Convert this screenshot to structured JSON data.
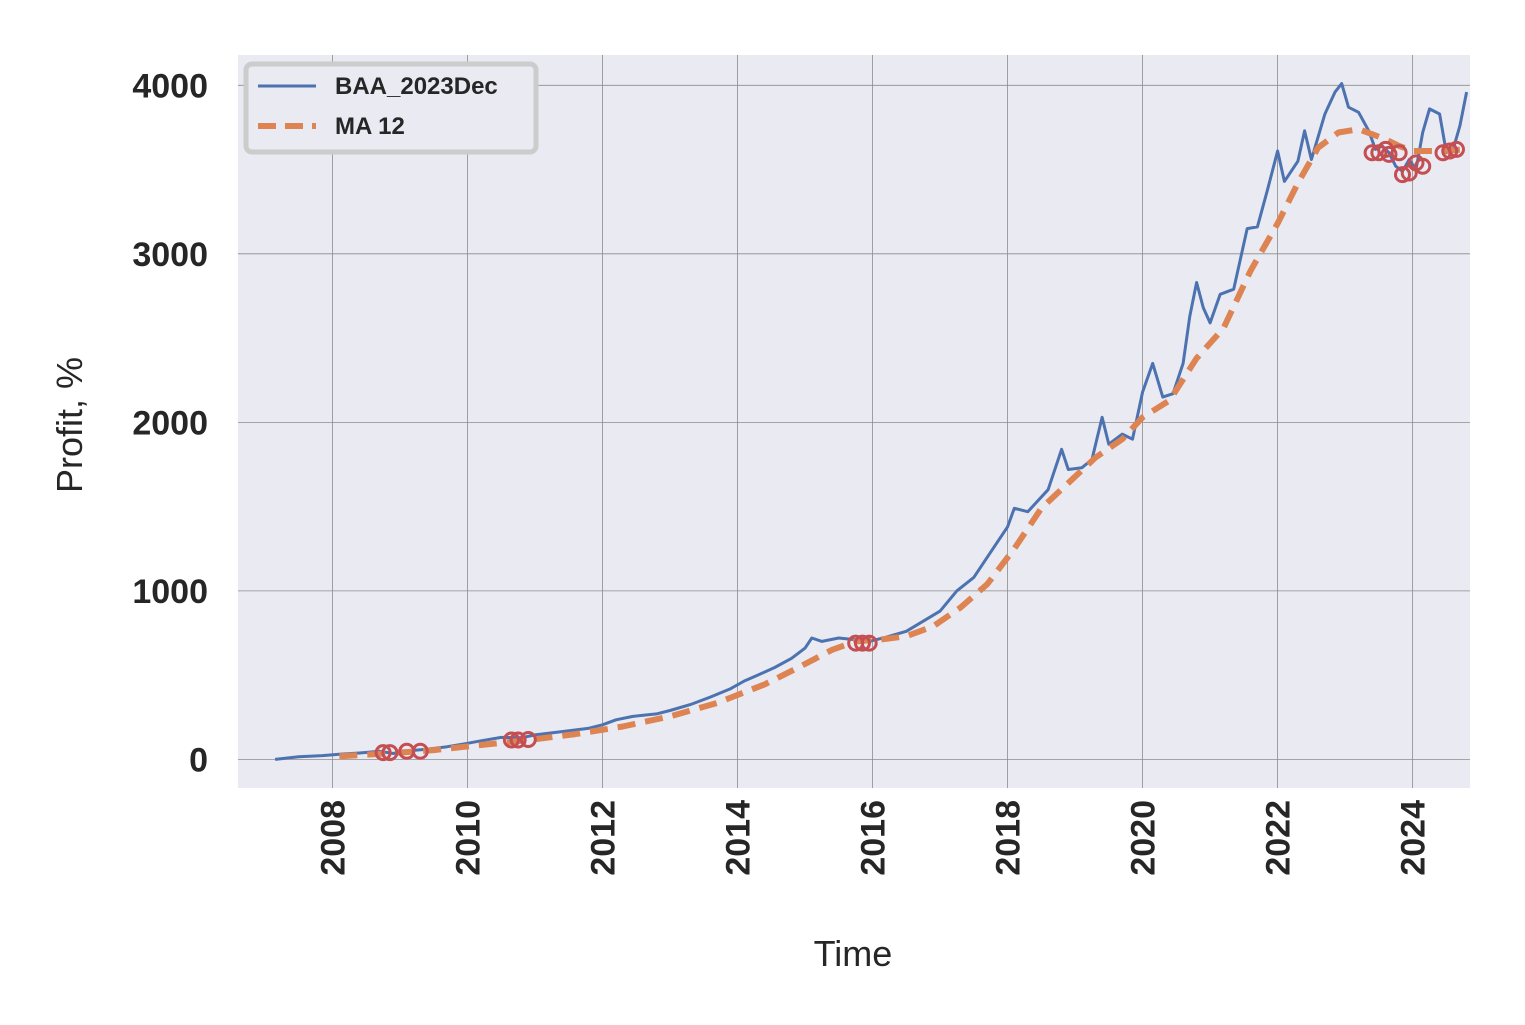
{
  "colors": {
    "plot_background": "#EAEAF2",
    "grid": "#8c8c8c",
    "series_line": "#4C72B0",
    "moving_average": "#DD8452",
    "markers": "#C44E52",
    "text": "#262626"
  },
  "chart_data": {
    "type": "line",
    "title": "",
    "xlabel": "Time",
    "ylabel": "Profit, %",
    "xlim": [
      2006.6,
      2024.85
    ],
    "ylim": [
      -170,
      4180
    ],
    "x_ticks": [
      "2008",
      "2010",
      "2012",
      "2014",
      "2016",
      "2018",
      "2020",
      "2022",
      "2024"
    ],
    "y_ticks": [
      "0",
      "1000",
      "2000",
      "3000",
      "4000"
    ],
    "grid": true,
    "legend": "top-left",
    "series": [
      {
        "name": "BAA_2023Dec",
        "style": "solid",
        "points": [
          [
            2007.15,
            0
          ],
          [
            2007.5,
            15
          ],
          [
            2007.85,
            22
          ],
          [
            2008.1,
            30
          ],
          [
            2008.4,
            38
          ],
          [
            2008.7,
            48
          ],
          [
            2008.9,
            35
          ],
          [
            2009.1,
            50
          ],
          [
            2009.4,
            60
          ],
          [
            2009.7,
            75
          ],
          [
            2010.0,
            95
          ],
          [
            2010.2,
            110
          ],
          [
            2010.5,
            130
          ],
          [
            2010.8,
            128
          ],
          [
            2011.0,
            145
          ],
          [
            2011.4,
            165
          ],
          [
            2011.8,
            185
          ],
          [
            2012.0,
            205
          ],
          [
            2012.2,
            235
          ],
          [
            2012.45,
            255
          ],
          [
            2012.8,
            270
          ],
          [
            2013.0,
            290
          ],
          [
            2013.3,
            325
          ],
          [
            2013.6,
            370
          ],
          [
            2013.9,
            420
          ],
          [
            2014.1,
            465
          ],
          [
            2014.3,
            500
          ],
          [
            2014.55,
            545
          ],
          [
            2014.8,
            600
          ],
          [
            2015.0,
            660
          ],
          [
            2015.1,
            720
          ],
          [
            2015.25,
            700
          ],
          [
            2015.5,
            720
          ],
          [
            2015.75,
            710
          ],
          [
            2015.95,
            700
          ],
          [
            2016.2,
            725
          ],
          [
            2016.5,
            760
          ],
          [
            2016.75,
            820
          ],
          [
            2017.0,
            880
          ],
          [
            2017.25,
            1000
          ],
          [
            2017.5,
            1080
          ],
          [
            2017.75,
            1230
          ],
          [
            2018.0,
            1380
          ],
          [
            2018.1,
            1490
          ],
          [
            2018.3,
            1470
          ],
          [
            2018.6,
            1600
          ],
          [
            2018.8,
            1840
          ],
          [
            2018.9,
            1720
          ],
          [
            2019.1,
            1730
          ],
          [
            2019.25,
            1780
          ],
          [
            2019.4,
            2030
          ],
          [
            2019.5,
            1870
          ],
          [
            2019.7,
            1930
          ],
          [
            2019.85,
            1900
          ],
          [
            2020.0,
            2180
          ],
          [
            2020.15,
            2350
          ],
          [
            2020.3,
            2150
          ],
          [
            2020.45,
            2170
          ],
          [
            2020.6,
            2350
          ],
          [
            2020.7,
            2630
          ],
          [
            2020.8,
            2830
          ],
          [
            2020.9,
            2680
          ],
          [
            2021.0,
            2590
          ],
          [
            2021.15,
            2760
          ],
          [
            2021.35,
            2790
          ],
          [
            2021.55,
            3150
          ],
          [
            2021.7,
            3160
          ],
          [
            2021.85,
            3380
          ],
          [
            2022.0,
            3610
          ],
          [
            2022.1,
            3430
          ],
          [
            2022.3,
            3550
          ],
          [
            2022.4,
            3730
          ],
          [
            2022.5,
            3560
          ],
          [
            2022.7,
            3830
          ],
          [
            2022.85,
            3960
          ],
          [
            2022.95,
            4010
          ],
          [
            2023.05,
            3870
          ],
          [
            2023.2,
            3840
          ],
          [
            2023.35,
            3730
          ],
          [
            2023.45,
            3620
          ],
          [
            2023.55,
            3640
          ],
          [
            2023.65,
            3600
          ],
          [
            2023.75,
            3520
          ],
          [
            2023.85,
            3490
          ],
          [
            2023.95,
            3560
          ],
          [
            2024.05,
            3500
          ],
          [
            2024.15,
            3720
          ],
          [
            2024.25,
            3860
          ],
          [
            2024.4,
            3830
          ],
          [
            2024.5,
            3600
          ],
          [
            2024.6,
            3620
          ],
          [
            2024.7,
            3760
          ],
          [
            2024.8,
            3960
          ]
        ]
      },
      {
        "name": "MA 12",
        "style": "dashed",
        "points": [
          [
            2008.1,
            18
          ],
          [
            2008.8,
            35
          ],
          [
            2009.5,
            55
          ],
          [
            2010.2,
            85
          ],
          [
            2010.9,
            115
          ],
          [
            2011.6,
            150
          ],
          [
            2012.3,
            195
          ],
          [
            2013.0,
            255
          ],
          [
            2013.7,
            335
          ],
          [
            2014.4,
            445
          ],
          [
            2014.9,
            545
          ],
          [
            2015.4,
            650
          ],
          [
            2015.75,
            700
          ],
          [
            2016.1,
            710
          ],
          [
            2016.5,
            730
          ],
          [
            2016.9,
            790
          ],
          [
            2017.3,
            900
          ],
          [
            2017.7,
            1040
          ],
          [
            2018.1,
            1250
          ],
          [
            2018.5,
            1490
          ],
          [
            2018.9,
            1640
          ],
          [
            2019.3,
            1790
          ],
          [
            2019.7,
            1900
          ],
          [
            2020.0,
            2030
          ],
          [
            2020.4,
            2130
          ],
          [
            2020.8,
            2380
          ],
          [
            2021.2,
            2560
          ],
          [
            2021.6,
            2900
          ],
          [
            2022.0,
            3180
          ],
          [
            2022.3,
            3420
          ],
          [
            2022.6,
            3630
          ],
          [
            2022.9,
            3720
          ],
          [
            2023.2,
            3740
          ],
          [
            2023.4,
            3710
          ],
          [
            2023.6,
            3680
          ],
          [
            2023.8,
            3640
          ],
          [
            2024.0,
            3610
          ],
          [
            2024.4,
            3610
          ],
          [
            2024.8,
            3620
          ]
        ]
      }
    ],
    "markers": [
      [
        2008.75,
        40
      ],
      [
        2008.85,
        40
      ],
      [
        2009.1,
        48
      ],
      [
        2009.3,
        48
      ],
      [
        2010.65,
        115
      ],
      [
        2010.75,
        115
      ],
      [
        2010.9,
        118
      ],
      [
        2015.75,
        690
      ],
      [
        2015.85,
        690
      ],
      [
        2015.95,
        690
      ],
      [
        2023.4,
        3600
      ],
      [
        2023.5,
        3600
      ],
      [
        2023.6,
        3620
      ],
      [
        2023.65,
        3590
      ],
      [
        2023.8,
        3600
      ],
      [
        2023.85,
        3470
      ],
      [
        2023.95,
        3480
      ],
      [
        2024.05,
        3540
      ],
      [
        2024.15,
        3520
      ],
      [
        2024.45,
        3600
      ],
      [
        2024.55,
        3610
      ],
      [
        2024.65,
        3620
      ]
    ]
  }
}
